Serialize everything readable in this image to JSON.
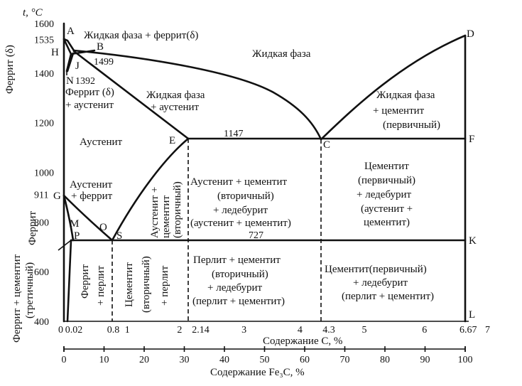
{
  "axis": {
    "y_unit": "t, °C",
    "y_ticks": [
      {
        "label": "1600",
        "v": 1600
      },
      {
        "label": "1535",
        "v": 1535
      },
      {
        "label": "1400",
        "v": 1400
      },
      {
        "label": "1200",
        "v": 1200
      },
      {
        "label": "1000",
        "v": 1000
      },
      {
        "label": "911",
        "v": 911
      },
      {
        "label": "800",
        "v": 800
      },
      {
        "label": "600",
        "v": 600
      },
      {
        "label": "400",
        "v": 400
      }
    ],
    "x_c_ticks": [
      {
        "label": "0",
        "v": 0
      },
      {
        "label": "0.02",
        "v": 0.02
      },
      {
        "label": "0.8",
        "v": 0.8
      },
      {
        "label": "1",
        "v": 1
      },
      {
        "label": "2",
        "v": 2
      },
      {
        "label": "2.14",
        "v": 2.14
      },
      {
        "label": "3",
        "v": 3
      },
      {
        "label": "4",
        "v": 4
      },
      {
        "label": "4.3",
        "v": 4.3
      },
      {
        "label": "5",
        "v": 5
      },
      {
        "label": "6",
        "v": 6
      },
      {
        "label": "6.67",
        "v": 6.67
      },
      {
        "label": "7",
        "v": 7
      }
    ],
    "x_c_label": "Содержание С, %",
    "x_fe3c_ticks": [
      "0",
      "10",
      "20",
      "30",
      "40",
      "50",
      "60",
      "70",
      "80",
      "90",
      "100"
    ],
    "x_fe3c_label": "Содержание Fe₃C, %"
  },
  "points": {
    "A": "A",
    "B": "B",
    "H": "H",
    "J": "J",
    "N": "N",
    "E": "E",
    "C": "C",
    "D": "D",
    "F": "F",
    "G": "G",
    "M": "M",
    "O": "O",
    "P": "P",
    "S": "S",
    "K": "K",
    "L": "L"
  },
  "temps": {
    "t1499": "1499",
    "t1392": "1392",
    "t1147": "1147",
    "t727": "727"
  },
  "regions": {
    "top_left": "Жидкая фаза + феррит(δ)",
    "liquid": "Жидкая фаза",
    "delta_austenite_1": "Феррит (δ)",
    "delta_austenite_2": "+ аустенит",
    "ferrite_delta": "Феррит (δ)",
    "liq_aust_1": "Жидкая фаза",
    "liq_aust_2": "+ аустенит",
    "liq_cem_1": "Жидкая фаза",
    "liq_cem_2": "+ цементит",
    "liq_cem_3": "(первичный)",
    "austenite": "Аустенит",
    "aust_ferr_1": "Аустенит",
    "aust_ferr_2": "+ феррит",
    "ferrite_side": "Феррит",
    "aust_cem_v": [
      "Аустенит +",
      "цементит",
      "(вторичный)"
    ],
    "mid_upper": [
      "Аустенит + цементит",
      "(вторичный)",
      "+ ледебурит",
      "(аустенит + цементит)"
    ],
    "right_upper": [
      "Цементит",
      "(первичный)",
      "+ ледебурит",
      "(аустенит +",
      "цементит)"
    ],
    "ferr_cem_tert": [
      "Феррит + цементит",
      "(третичный)"
    ],
    "ferr_perl": [
      "Феррит",
      "+ перлит"
    ],
    "cem_perl": [
      "Цементит",
      "(вторичный)",
      "+ перлит"
    ],
    "mid_lower": [
      "Перлит + цементит",
      "(вторичный)",
      "+ ледебурит",
      "(перлит + цементит)"
    ],
    "right_lower": [
      "Цементит(первичный)",
      "+ ледебурит",
      "(перлит + цементит)"
    ]
  }
}
